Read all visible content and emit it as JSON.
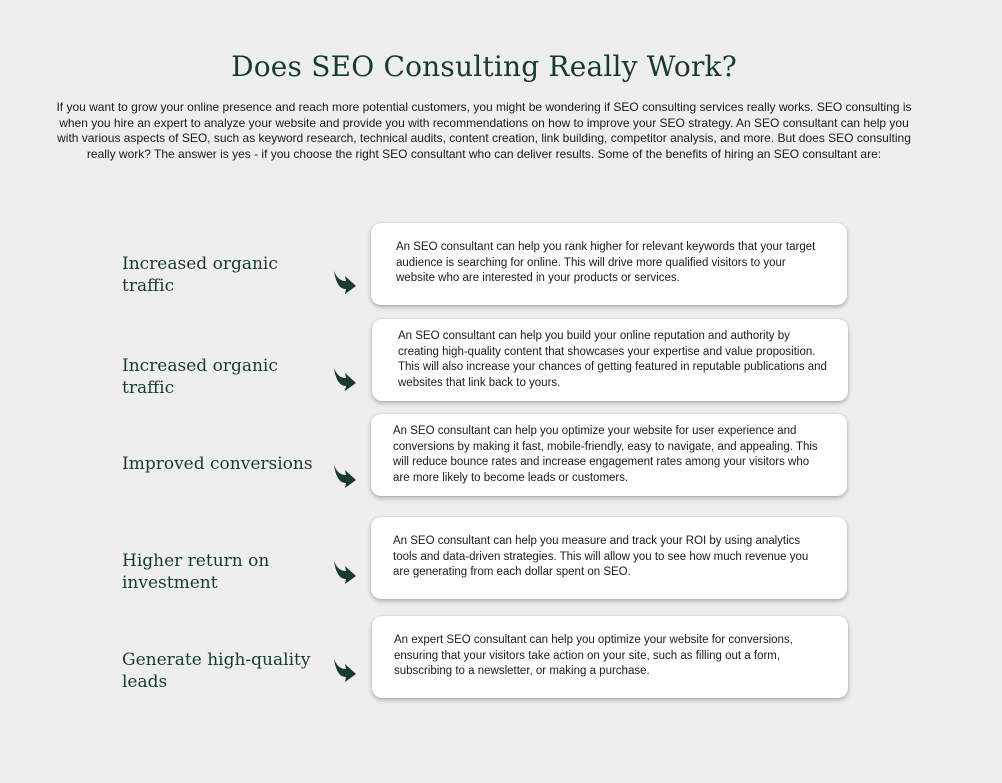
{
  "page": {
    "title": "Does SEO Consulting Really Work?",
    "intro": "If you want to grow your online presence and reach more potential customers, you might be wondering if SEO consulting services really works. SEO consulting is when you hire an expert to analyze your website and provide you with recommendations on how to improve your SEO strategy. An SEO consultant can help you with various aspects of SEO, such as keyword research, technical audits, content creation, link building, competitor analysis, and more. But does SEO consulting really work? The answer is yes - if you choose the right SEO consultant who can deliver results. Some of the benefits of hiring an SEO consultant are:"
  },
  "benefits": [
    {
      "label": "Increased organic traffic",
      "text": "An SEO consultant can help you rank higher for relevant keywords that your target audience is searching for online. This will drive more qualified visitors to your website who are interested in your products or services."
    },
    {
      "label": "Increased organic traffic",
      "text": "An SEO consultant can help you build your online reputation and authority by creating high-quality content that showcases your expertise and value proposition. This will also increase your chances of getting featured in reputable publications and websites that link back to yours."
    },
    {
      "label": "Improved conversions",
      "text": "An SEO consultant can help you optimize your website for user experience and conversions by making it fast, mobile-friendly, easy to navigate, and appealing. This will reduce bounce rates and increase engagement rates among your visitors who are more likely to become leads or customers."
    },
    {
      "label": "Higher return on investment",
      "text": "An SEO consultant can help you measure and track your ROI by using analytics tools and data-driven strategies. This will allow you to see how much revenue you are generating from each dollar spent on SEO."
    },
    {
      "label": "Generate high-quality leads",
      "text": "An expert SEO consultant can help you optimize your website for conversions, ensuring that your visitors take action on your site, such as filling out a form, subscribing to a newsletter, or making a purchase."
    }
  ],
  "icons": {
    "arrow": "curved-arrow-down-right-icon"
  },
  "colors": {
    "background": "#eeeeee",
    "heading": "#173a32",
    "card": "#ffffff"
  }
}
